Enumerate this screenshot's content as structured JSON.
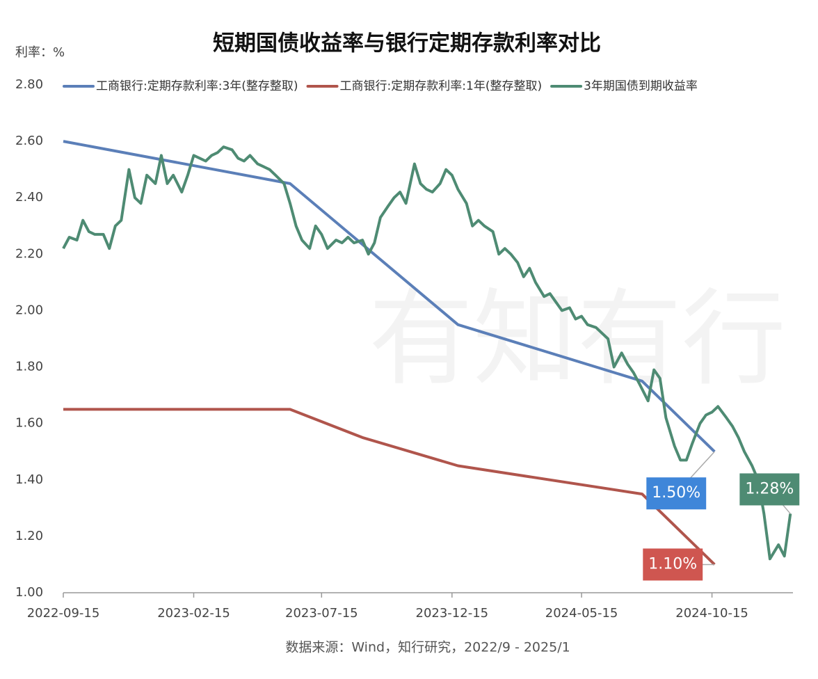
{
  "chart_data": {
    "type": "line",
    "title": "短期国债收益率与银行定期存款利率对比",
    "y_label": "利率：%",
    "source": "数据来源：Wind，知行研究，2022/9 - 2025/1",
    "watermark": "有知有行",
    "xlim": [
      "2022-09-15",
      "2025-01-18"
    ],
    "xticks": [
      "2022-09-15",
      "2023-02-15",
      "2023-07-15",
      "2023-12-15",
      "2024-05-15",
      "2024-10-15"
    ],
    "ylim": [
      1.0,
      2.8
    ],
    "yticks": [
      {
        "value": 1.0,
        "label": "1.00"
      },
      {
        "value": 1.2,
        "label": "1.20"
      },
      {
        "value": 1.4,
        "label": "1.40"
      },
      {
        "value": 1.6,
        "label": "1.60"
      },
      {
        "value": 1.8,
        "label": "1.80"
      },
      {
        "value": 2.0,
        "label": "2.00"
      },
      {
        "value": 2.2,
        "label": "2.20"
      },
      {
        "value": 2.4,
        "label": "2.40"
      },
      {
        "value": 2.6,
        "label": "2.60"
      },
      {
        "value": 2.8,
        "label": "2.80"
      }
    ],
    "grid": false,
    "series": [
      {
        "name": "工商银行:定期存款利率:3年(整存整取)",
        "color": "#5b7fb8",
        "label_color": "#3f86d9",
        "x": [
          "2022-09-15",
          "2023-06-08",
          "2023-12-22",
          "2024-07-25",
          "2024-10-18"
        ],
        "values": [
          2.6,
          2.45,
          1.95,
          1.75,
          1.5
        ],
        "value_labels": [
          null,
          null,
          null,
          null,
          "1.50%"
        ]
      },
      {
        "name": "工商银行:定期存款利率:1年(整存整取)",
        "color": "#b0554c",
        "label_color": "#cf5650",
        "x": [
          "2022-09-15",
          "2023-06-08",
          "2023-09-01",
          "2023-12-22",
          "2024-07-25",
          "2024-10-18"
        ],
        "values": [
          1.65,
          1.65,
          1.55,
          1.45,
          1.35,
          1.1
        ],
        "value_labels": [
          null,
          null,
          null,
          null,
          null,
          "1.10%"
        ]
      },
      {
        "name": "3年期国债到期收益率",
        "color": "#4e8b73",
        "label_color": "#4e8b73",
        "x": [
          "2022-09-15",
          "2022-09-22",
          "2022-10-01",
          "2022-10-08",
          "2022-10-15",
          "2022-10-22",
          "2022-11-01",
          "2022-11-08",
          "2022-11-15",
          "2022-11-22",
          "2022-12-01",
          "2022-12-08",
          "2022-12-15",
          "2022-12-22",
          "2023-01-01",
          "2023-01-08",
          "2023-01-15",
          "2023-01-22",
          "2023-02-01",
          "2023-02-08",
          "2023-02-15",
          "2023-02-22",
          "2023-03-01",
          "2023-03-08",
          "2023-03-15",
          "2023-03-22",
          "2023-04-01",
          "2023-04-08",
          "2023-04-15",
          "2023-04-22",
          "2023-05-01",
          "2023-05-08",
          "2023-05-15",
          "2023-05-22",
          "2023-06-01",
          "2023-06-08",
          "2023-06-15",
          "2023-06-22",
          "2023-07-01",
          "2023-07-08",
          "2023-07-15",
          "2023-07-22",
          "2023-08-01",
          "2023-08-08",
          "2023-08-15",
          "2023-08-22",
          "2023-09-01",
          "2023-09-08",
          "2023-09-15",
          "2023-09-22",
          "2023-10-01",
          "2023-10-08",
          "2023-10-15",
          "2023-10-22",
          "2023-11-01",
          "2023-11-08",
          "2023-11-15",
          "2023-11-22",
          "2023-12-01",
          "2023-12-08",
          "2023-12-15",
          "2023-12-22",
          "2024-01-01",
          "2024-01-08",
          "2024-01-15",
          "2024-01-22",
          "2024-02-01",
          "2024-02-08",
          "2024-02-15",
          "2024-02-22",
          "2024-03-01",
          "2024-03-08",
          "2024-03-15",
          "2024-03-22",
          "2024-04-01",
          "2024-04-08",
          "2024-04-15",
          "2024-04-22",
          "2024-05-01",
          "2024-05-08",
          "2024-05-15",
          "2024-05-22",
          "2024-06-01",
          "2024-06-08",
          "2024-06-15",
          "2024-06-22",
          "2024-07-01",
          "2024-07-08",
          "2024-07-15",
          "2024-07-22",
          "2024-08-01",
          "2024-08-08",
          "2024-08-15",
          "2024-08-22",
          "2024-09-01",
          "2024-09-08",
          "2024-09-15",
          "2024-09-22",
          "2024-10-01",
          "2024-10-08",
          "2024-10-15",
          "2024-10-22",
          "2024-11-01",
          "2024-11-08",
          "2024-11-15",
          "2024-11-22",
          "2024-12-01",
          "2024-12-08",
          "2024-12-15",
          "2024-12-22",
          "2025-01-01",
          "2025-01-08",
          "2025-01-15"
        ],
        "values": [
          2.22,
          2.26,
          2.25,
          2.32,
          2.28,
          2.27,
          2.27,
          2.22,
          2.3,
          2.32,
          2.5,
          2.4,
          2.38,
          2.48,
          2.45,
          2.55,
          2.45,
          2.48,
          2.42,
          2.48,
          2.55,
          2.54,
          2.53,
          2.55,
          2.56,
          2.58,
          2.57,
          2.54,
          2.53,
          2.55,
          2.52,
          2.51,
          2.5,
          2.48,
          2.45,
          2.38,
          2.3,
          2.25,
          2.22,
          2.3,
          2.27,
          2.22,
          2.25,
          2.24,
          2.26,
          2.24,
          2.25,
          2.2,
          2.24,
          2.33,
          2.37,
          2.4,
          2.42,
          2.38,
          2.52,
          2.45,
          2.43,
          2.42,
          2.45,
          2.5,
          2.48,
          2.43,
          2.38,
          2.3,
          2.32,
          2.3,
          2.28,
          2.2,
          2.22,
          2.2,
          2.17,
          2.12,
          2.15,
          2.1,
          2.05,
          2.06,
          2.03,
          2.0,
          2.01,
          1.97,
          1.98,
          1.95,
          1.94,
          1.92,
          1.9,
          1.8,
          1.85,
          1.81,
          1.78,
          1.74,
          1.68,
          1.79,
          1.76,
          1.62,
          1.52,
          1.47,
          1.47,
          1.53,
          1.6,
          1.63,
          1.64,
          1.66,
          1.62,
          1.59,
          1.55,
          1.5,
          1.45,
          1.4,
          1.28,
          1.12,
          1.17,
          1.13,
          1.28
        ],
        "value_labels": [
          null,
          null,
          null,
          null,
          null,
          null,
          null,
          null,
          null,
          null,
          null,
          null,
          null,
          null,
          null,
          null,
          null,
          null,
          null,
          null,
          null,
          null,
          null,
          null,
          null,
          null,
          null,
          null,
          null,
          null,
          null,
          null,
          null,
          null,
          null,
          null,
          null,
          null,
          null,
          null,
          null,
          null,
          null,
          null,
          null,
          null,
          null,
          null,
          null,
          null,
          null,
          null,
          null,
          null,
          null,
          null,
          null,
          null,
          null,
          null,
          null,
          null,
          null,
          null,
          null,
          null,
          null,
          null,
          null,
          null,
          null,
          null,
          null,
          null,
          null,
          null,
          null,
          null,
          null,
          null,
          null,
          null,
          null,
          null,
          null,
          null,
          null,
          null,
          null,
          null,
          null,
          null,
          null,
          null,
          null,
          null,
          null,
          null,
          null,
          null,
          null,
          null,
          null,
          null,
          null,
          null,
          null,
          null,
          null,
          null,
          null,
          null,
          "1.28%"
        ]
      }
    ]
  }
}
